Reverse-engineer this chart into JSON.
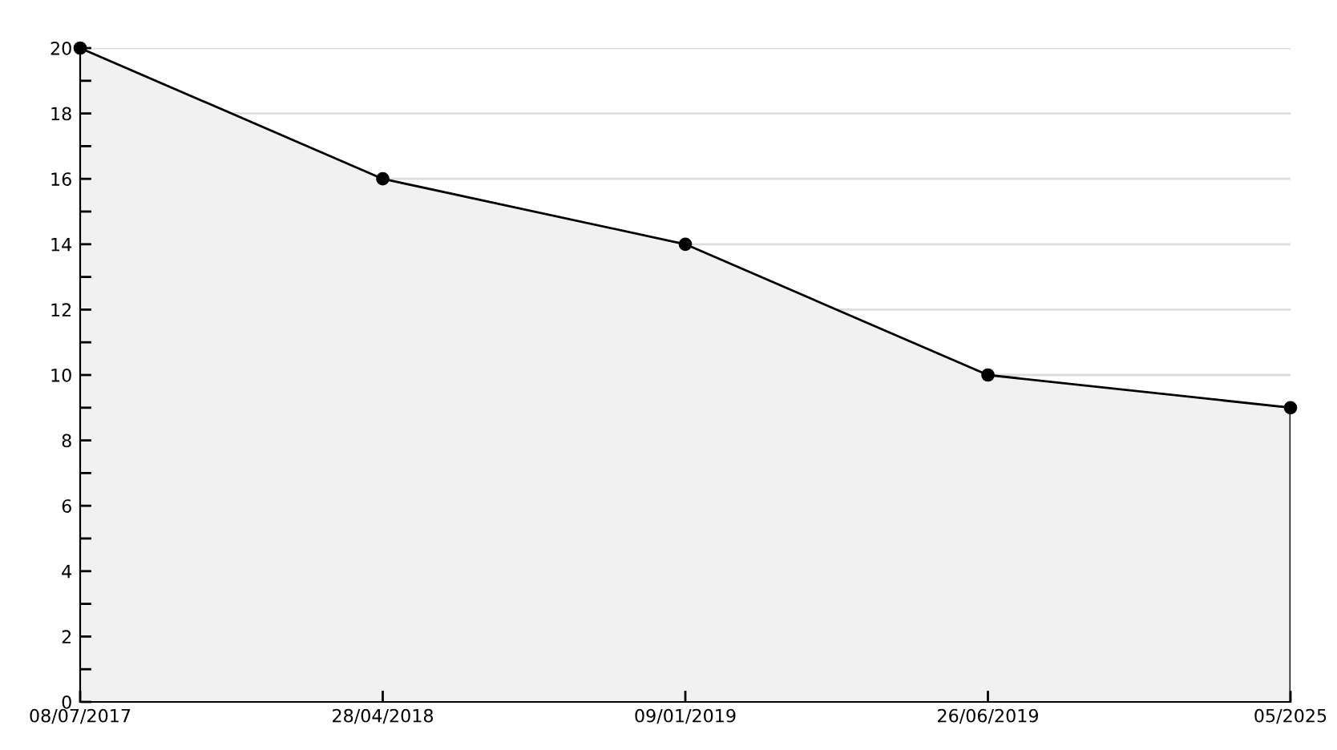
{
  "chart_data": {
    "type": "area",
    "categories": [
      "08/07/2017",
      "28/04/2018",
      "09/01/2019",
      "26/06/2019",
      "05/2025"
    ],
    "series": [
      {
        "color": "#f1f1f1",
        "values": [
          20,
          16,
          14,
          10,
          9
        ]
      }
    ],
    "ylim": [
      0,
      20
    ],
    "yticks": [
      0,
      {
        "value": 1,
        "label": null
      },
      2,
      {
        "value": 3,
        "label": null
      },
      4,
      {
        "value": 5,
        "label": null
      },
      6,
      {
        "value": 7,
        "label": null
      },
      8,
      {
        "value": 9,
        "label": null
      },
      10,
      {
        "value": 11,
        "label": null
      },
      12,
      {
        "value": 13,
        "label": null
      },
      14,
      {
        "value": 15,
        "label": null
      },
      16,
      {
        "value": 17,
        "label": null
      },
      18,
      {
        "value": 19,
        "label": null
      },
      20
    ],
    "grid": "y",
    "marker": "circle",
    "line_style": "solid"
  }
}
